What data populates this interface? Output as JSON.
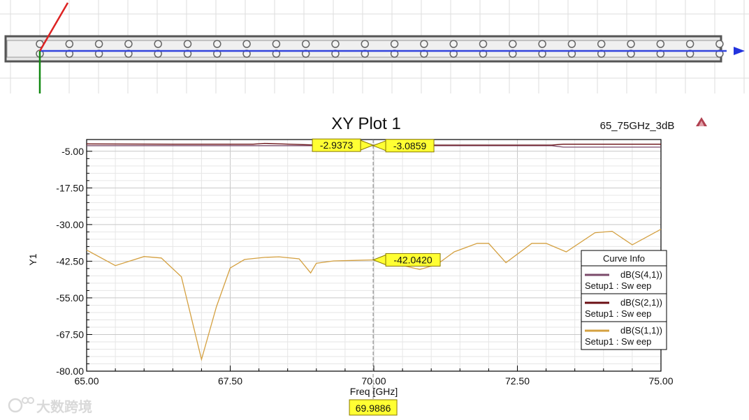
{
  "chart_data": {
    "type": "line",
    "title": "XY Plot 1",
    "subtitle": "65_75GHz_3dB",
    "xlabel": "Freq [GHz]",
    "ylabel": "Y1",
    "xlim": [
      65,
      75
    ],
    "ylim": [
      -80,
      -1
    ],
    "xticks": [
      65,
      67.5,
      70,
      72.5,
      75
    ],
    "xtick_labels": [
      "65.00",
      "67.50",
      "70.00",
      "72.50",
      "75.00"
    ],
    "yticks": [
      -5,
      -17.5,
      -30,
      -42.5,
      -55,
      -67.5,
      -80
    ],
    "ytick_labels": [
      "-5.00",
      "-17.50",
      "-30.00",
      "-42.50",
      "-55.00",
      "-67.50",
      "-80.00"
    ],
    "grid": true,
    "legend": {
      "title": "Curve Info",
      "placement": "right",
      "entries": [
        {
          "name": "dB(S(4,1))",
          "sub": "Setup1 : Sw eep",
          "color": "#7a4a6a"
        },
        {
          "name": "dB(S(2,1))",
          "sub": "Setup1 : Sw eep",
          "color": "#6b0f14"
        },
        {
          "name": "dB(S(1,1))",
          "sub": "Setup1 : Sw eep",
          "color": "#d4a040"
        }
      ]
    },
    "series": [
      {
        "name": "dB(S(4,1))",
        "color": "#7a4a6a",
        "x": [
          65,
          66.5,
          68,
          69,
          70,
          71,
          72,
          73.1,
          73.3,
          74,
          75
        ],
        "y": [
          -3.1,
          -3.1,
          -3.1,
          -3.1,
          -3.09,
          -3.1,
          -3.1,
          -3.1,
          -3.6,
          -3.6,
          -3.6
        ]
      },
      {
        "name": "dB(S(2,1))",
        "color": "#6b0f14",
        "x": [
          65,
          66.5,
          67.9,
          68.1,
          69,
          70,
          71,
          72,
          73.1,
          73.3,
          74,
          75
        ],
        "y": [
          -2.5,
          -2.6,
          -2.6,
          -2.3,
          -2.9,
          -2.94,
          -2.9,
          -2.9,
          -2.9,
          -2.6,
          -2.6,
          -2.6
        ]
      },
      {
        "name": "dB(S(1,1))",
        "color": "#d4a040",
        "x": [
          65.0,
          65.5,
          66.0,
          66.3,
          66.65,
          67.0,
          67.26,
          67.5,
          67.75,
          68.1,
          68.35,
          68.7,
          68.9,
          69.0,
          69.3,
          70.0,
          70.3,
          70.8,
          71.1,
          71.4,
          71.8,
          72.0,
          72.3,
          72.75,
          73.0,
          73.35,
          73.85,
          74.15,
          74.5,
          75.0
        ],
        "y": [
          -38.7,
          -44,
          -40.9,
          -41.4,
          -47.8,
          -76,
          -58,
          -44.8,
          -41.9,
          -41.2,
          -41,
          -41.7,
          -46.5,
          -43.2,
          -42.4,
          -42.04,
          -43,
          -45.3,
          -43.6,
          -39.3,
          -36.4,
          -36.4,
          -43,
          -36.4,
          -36.4,
          -39.3,
          -32.8,
          -32.3,
          -36.9,
          -31.6
        ]
      }
    ],
    "markers": {
      "x_value": 69.9886,
      "x_label": "69.9886",
      "labels": [
        {
          "text": "-2.9373",
          "y": -2.94,
          "side": "left"
        },
        {
          "text": "-3.0859",
          "y": -3.09,
          "side": "right"
        },
        {
          "text": "-42.0420",
          "y": -42.04,
          "side": "right"
        }
      ]
    }
  },
  "watermark": "大数跨境"
}
